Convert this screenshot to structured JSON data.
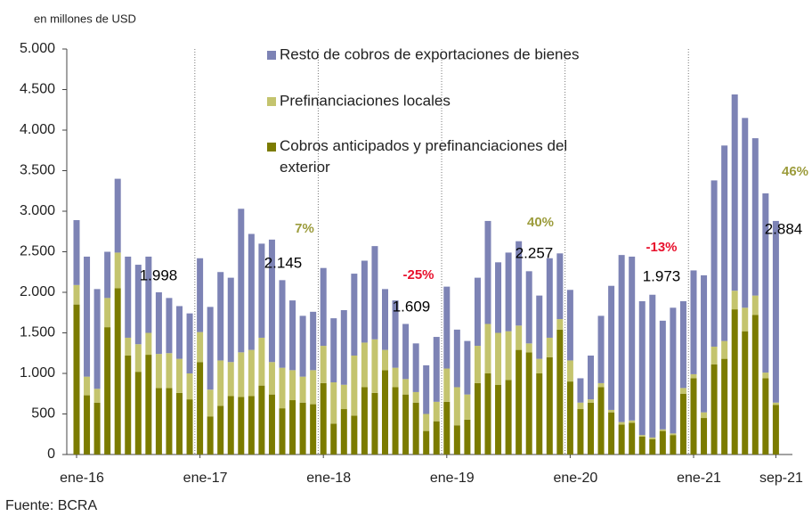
{
  "chart_data": {
    "type": "stacked_bar",
    "unit_label": "en millones de USD",
    "source": "Fuente: BCRA",
    "categories": [
      "ene-16",
      null,
      null,
      null,
      null,
      null,
      null,
      null,
      null,
      null,
      null,
      null,
      "ene-17",
      null,
      null,
      null,
      null,
      null,
      null,
      null,
      null,
      null,
      null,
      null,
      "ene-18",
      null,
      null,
      null,
      null,
      null,
      null,
      null,
      null,
      null,
      null,
      null,
      "ene-19",
      null,
      null,
      null,
      null,
      null,
      null,
      null,
      null,
      null,
      null,
      null,
      "ene-20",
      null,
      null,
      null,
      null,
      null,
      null,
      null,
      null,
      null,
      null,
      null,
      "ene-21",
      null,
      null,
      null,
      null,
      null,
      null,
      null,
      "sep-21"
    ],
    "series": [
      {
        "name": "Cobros anticipados y prefinanciaciones del exterior",
        "color": "#7b7b00",
        "values": [
          1850,
          730,
          640,
          1570,
          2050,
          1220,
          1020,
          1230,
          820,
          820,
          760,
          680,
          1140,
          470,
          600,
          720,
          710,
          720,
          850,
          740,
          570,
          670,
          640,
          620,
          880,
          380,
          560,
          480,
          830,
          760,
          1040,
          830,
          740,
          640,
          290,
          410,
          650,
          360,
          430,
          880,
          1000,
          860,
          920,
          1290,
          1260,
          1000,
          1200,
          1540,
          900,
          560,
          640,
          830,
          520,
          370,
          390,
          220,
          190,
          290,
          240,
          750,
          940,
          450,
          1110,
          1180,
          1790,
          1520,
          1720,
          940,
          610
        ]
      },
      {
        "name": "Prefinanciaciones locales",
        "color": "#c4c46e",
        "values": [
          240,
          230,
          170,
          360,
          440,
          220,
          340,
          270,
          420,
          430,
          420,
          320,
          370,
          330,
          560,
          420,
          550,
          570,
          590,
          400,
          500,
          370,
          320,
          420,
          460,
          510,
          300,
          740,
          550,
          660,
          250,
          240,
          190,
          130,
          210,
          240,
          410,
          470,
          310,
          460,
          610,
          640,
          600,
          300,
          110,
          180,
          240,
          130,
          260,
          80,
          40,
          50,
          30,
          30,
          30,
          20,
          20,
          20,
          20,
          70,
          50,
          70,
          220,
          220,
          230,
          290,
          240,
          70,
          30
        ]
      },
      {
        "name": "Resto de cobros de exportaciones de bienes",
        "color": "#7d83b5",
        "values": [
          800,
          1480,
          1230,
          570,
          910,
          1000,
          980,
          940,
          760,
          680,
          650,
          740,
          910,
          1020,
          1090,
          1040,
          1770,
          1430,
          1160,
          1510,
          1080,
          860,
          750,
          720,
          960,
          790,
          920,
          1010,
          1010,
          1150,
          750,
          830,
          680,
          600,
          600,
          800,
          1010,
          710,
          660,
          840,
          1270,
          870,
          970,
          1040,
          890,
          780,
          980,
          810,
          870,
          300,
          540,
          830,
          1530,
          2060,
          2020,
          1650,
          1760,
          1340,
          1550,
          1070,
          1280,
          1690,
          2050,
          2410,
          2420,
          2340,
          1940,
          2210,
          2240
        ]
      }
    ],
    "ylim": [
      0,
      5000
    ],
    "yticks": [
      0,
      500,
      {
        "value": 1000,
        "label": "1.000"
      },
      {
        "value": 1500,
        "label": "1.500"
      },
      {
        "value": 2000,
        "label": "2.000"
      },
      {
        "value": 2500,
        "label": "2.500"
      },
      {
        "value": 3000,
        "label": "3.000"
      },
      {
        "value": 3500,
        "label": "3.500"
      },
      {
        "value": 4000,
        "label": "4.000"
      },
      {
        "value": 4500,
        "label": "4.500"
      },
      {
        "value": 5000,
        "label": "5.000"
      }
    ],
    "annotations": [
      {
        "text": "1.998",
        "color": "#000000"
      },
      {
        "text": "2.145",
        "color": "#000000"
      },
      {
        "text": "7%",
        "color": "#9c9c3c"
      },
      {
        "text": "1.609",
        "color": "#000000"
      },
      {
        "text": "-25%",
        "color": "#e8112d"
      },
      {
        "text": "2.257",
        "color": "#000000"
      },
      {
        "text": "40%",
        "color": "#9c9c3c"
      },
      {
        "text": "1.973",
        "color": "#000000"
      },
      {
        "text": "-13%",
        "color": "#e8112d"
      },
      {
        "text": "2.884",
        "color": "#000000"
      },
      {
        "text": "46%",
        "color": "#9c9c3c"
      }
    ]
  }
}
